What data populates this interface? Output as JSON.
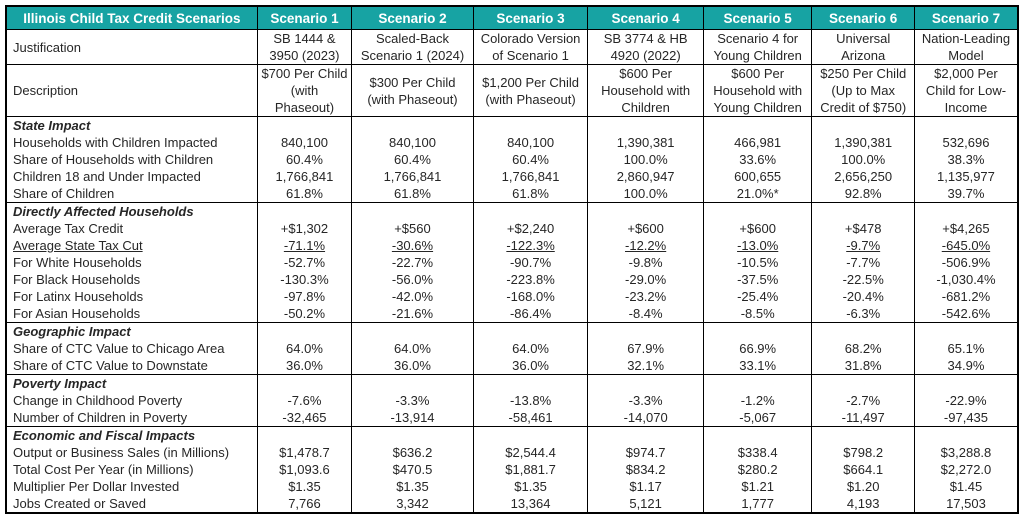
{
  "colors": {
    "header_bg": "#17a3a3",
    "header_text": "#ffffff",
    "border": "#000000",
    "text": "#262626"
  },
  "chart_data": {
    "type": "table",
    "title": "Illinois Child Tax Credit Scenarios",
    "scenario_headers": [
      "Scenario 1",
      "Scenario 2",
      "Scenario 3",
      "Scenario 4",
      "Scenario 5",
      "Scenario 6",
      "Scenario 7"
    ],
    "meta_rows": [
      {
        "label": "Justification",
        "values": [
          "SB 1444 & 3950 (2023)",
          "Scaled-Back Scenario 1 (2024)",
          "Colorado Version of Scenario 1",
          "SB 3774 & HB 4920 (2022)",
          "Scenario 4 for Young Children",
          "Universal Arizona",
          "Nation-Leading Model"
        ]
      },
      {
        "label": "Description",
        "values": [
          "$700 Per Child (with Phaseout)",
          "$300 Per Child (with Phaseout)",
          "$1,200 Per Child (with Phaseout)",
          "$600 Per Household with Children",
          "$600 Per Household with Young Children",
          "$250 Per Child (Up to Max Credit of $750)",
          "$2,000 Per Child for Low-Income"
        ]
      }
    ],
    "sections": [
      {
        "title": "State Impact",
        "rows": [
          {
            "label": "Households with Children Impacted",
            "values": [
              "840,100",
              "840,100",
              "840,100",
              "1,390,381",
              "466,981",
              "1,390,381",
              "532,696"
            ]
          },
          {
            "label": "Share of Households with Children",
            "values": [
              "60.4%",
              "60.4%",
              "60.4%",
              "100.0%",
              "33.6%",
              "100.0%",
              "38.3%"
            ]
          },
          {
            "label": "Children 18 and Under Impacted",
            "values": [
              "1,766,841",
              "1,766,841",
              "1,766,841",
              "2,860,947",
              "600,655",
              "2,656,250",
              "1,135,977"
            ]
          },
          {
            "label": "Share of Children",
            "values": [
              "61.8%",
              "61.8%",
              "61.8%",
              "100.0%",
              "21.0%*",
              "92.8%",
              "39.7%"
            ]
          }
        ]
      },
      {
        "title": "Directly Affected Households",
        "rows": [
          {
            "label": "Average Tax Credit",
            "values": [
              "+$1,302",
              "+$560",
              "+$2,240",
              "+$600",
              "+$600",
              "+$478",
              "+$4,265"
            ]
          },
          {
            "label": "Average State Tax Cut",
            "underline": true,
            "values": [
              "-71.1%",
              "-30.6%",
              "-122.3%",
              "-12.2%",
              "-13.0%",
              "-9.7%",
              "-645.0%"
            ]
          },
          {
            "label": "For White Households",
            "values": [
              "-52.7%",
              "-22.7%",
              "-90.7%",
              "-9.8%",
              "-10.5%",
              "-7.7%",
              "-506.9%"
            ]
          },
          {
            "label": "For Black Households",
            "values": [
              "-130.3%",
              "-56.0%",
              "-223.8%",
              "-29.0%",
              "-37.5%",
              "-22.5%",
              "-1,030.4%"
            ]
          },
          {
            "label": "For Latinx Households",
            "values": [
              "-97.8%",
              "-42.0%",
              "-168.0%",
              "-23.2%",
              "-25.4%",
              "-20.4%",
              "-681.2%"
            ]
          },
          {
            "label": "For Asian Households",
            "values": [
              "-50.2%",
              "-21.6%",
              "-86.4%",
              "-8.4%",
              "-8.5%",
              "-6.3%",
              "-542.6%"
            ]
          }
        ]
      },
      {
        "title": "Geographic Impact",
        "rows": [
          {
            "label": "Share of CTC Value to Chicago Area",
            "values": [
              "64.0%",
              "64.0%",
              "64.0%",
              "67.9%",
              "66.9%",
              "68.2%",
              "65.1%"
            ]
          },
          {
            "label": "Share of CTC Value to Downstate",
            "values": [
              "36.0%",
              "36.0%",
              "36.0%",
              "32.1%",
              "33.1%",
              "31.8%",
              "34.9%"
            ]
          }
        ]
      },
      {
        "title": "Poverty Impact",
        "rows": [
          {
            "label": "Change in Childhood Poverty",
            "values": [
              "-7.6%",
              "-3.3%",
              "-13.8%",
              "-3.3%",
              "-1.2%",
              "-2.7%",
              "-22.9%"
            ]
          },
          {
            "label": "Number of Children in Poverty",
            "values": [
              "-32,465",
              "-13,914",
              "-58,461",
              "-14,070",
              "-5,067",
              "-11,497",
              "-97,435"
            ]
          }
        ]
      },
      {
        "title": "Economic and Fiscal Impacts",
        "rows": [
          {
            "label": "Output or Business Sales (in Millions)",
            "values": [
              "$1,478.7",
              "$636.2",
              "$2,544.4",
              "$974.7",
              "$338.4",
              "$798.2",
              "$3,288.8"
            ]
          },
          {
            "label": "Total Cost Per Year (in Millions)",
            "values": [
              "$1,093.6",
              "$470.5",
              "$1,881.7",
              "$834.2",
              "$280.2",
              "$664.1",
              "$2,272.0"
            ]
          },
          {
            "label": "Multiplier Per Dollar Invested",
            "values": [
              "$1.35",
              "$1.35",
              "$1.35",
              "$1.17",
              "$1.21",
              "$1.20",
              "$1.45"
            ]
          },
          {
            "label": "Jobs Created or Saved",
            "values": [
              "7,766",
              "3,342",
              "13,364",
              "5,121",
              "1,777",
              "4,193",
              "17,503"
            ]
          }
        ]
      }
    ]
  }
}
